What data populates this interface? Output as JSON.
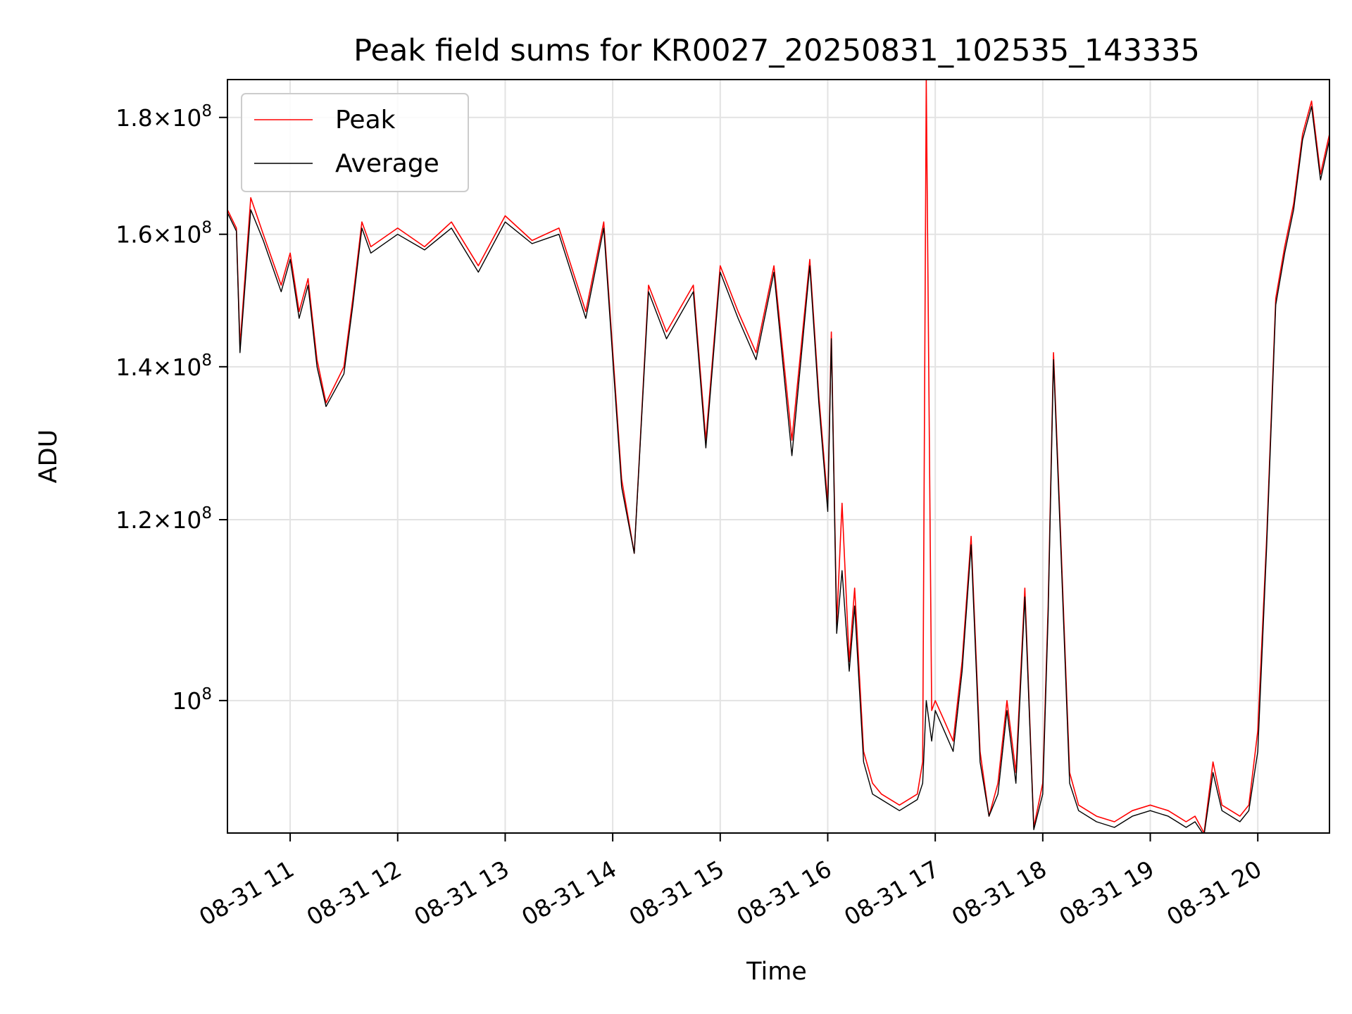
{
  "chart_data": {
    "type": "line",
    "title": "Peak field sums for KR0027_20250831_102535_143335",
    "xlabel": "Time",
    "ylabel": "ADU",
    "y_scale": "log",
    "xlim": [
      "2025-08-31 10:25",
      "2025-08-31 20:40"
    ],
    "ylim": [
      87500000,
      187000000
    ],
    "x_ticks": [
      "08-31 11",
      "08-31 12",
      "08-31 13",
      "08-31 14",
      "08-31 15",
      "08-31 16",
      "08-31 17",
      "08-31 18",
      "08-31 19",
      "08-31 20"
    ],
    "y_ticks": [
      {
        "value": 100000000,
        "base": "10",
        "exp": "8"
      },
      {
        "value": 120000000,
        "mant": "1.2",
        "base": "10",
        "exp": "8"
      },
      {
        "value": 140000000,
        "mant": "1.4",
        "base": "10",
        "exp": "8"
      },
      {
        "value": 160000000,
        "mant": "1.6",
        "base": "10",
        "exp": "8"
      },
      {
        "value": 180000000,
        "mant": "1.8",
        "base": "10",
        "exp": "8"
      }
    ],
    "grid": true,
    "legend_position": "upper-left",
    "series": [
      {
        "name": "Peak",
        "color": "#ff0000",
        "x": [
          "2025-08-31 10:25",
          "2025-08-31 10:30",
          "2025-08-31 10:32",
          "2025-08-31 10:38",
          "2025-08-31 10:45",
          "2025-08-31 10:55",
          "2025-08-31 11:00",
          "2025-08-31 11:05",
          "2025-08-31 11:10",
          "2025-08-31 11:15",
          "2025-08-31 11:20",
          "2025-08-31 11:30",
          "2025-08-31 11:35",
          "2025-08-31 11:40",
          "2025-08-31 11:45",
          "2025-08-31 12:00",
          "2025-08-31 12:15",
          "2025-08-31 12:30",
          "2025-08-31 12:45",
          "2025-08-31 13:00",
          "2025-08-31 13:15",
          "2025-08-31 13:30",
          "2025-08-31 13:45",
          "2025-08-31 13:55",
          "2025-08-31 14:05",
          "2025-08-31 14:12",
          "2025-08-31 14:20",
          "2025-08-31 14:30",
          "2025-08-31 14:45",
          "2025-08-31 14:52",
          "2025-08-31 15:00",
          "2025-08-31 15:10",
          "2025-08-31 15:20",
          "2025-08-31 15:30",
          "2025-08-31 15:40",
          "2025-08-31 15:50",
          "2025-08-31 15:55",
          "2025-08-31 16:00",
          "2025-08-31 16:02",
          "2025-08-31 16:05",
          "2025-08-31 16:08",
          "2025-08-31 16:12",
          "2025-08-31 16:15",
          "2025-08-31 16:20",
          "2025-08-31 16:25",
          "2025-08-31 16:30",
          "2025-08-31 16:40",
          "2025-08-31 16:50",
          "2025-08-31 16:53",
          "2025-08-31 16:55",
          "2025-08-31 16:58",
          "2025-08-31 17:00",
          "2025-08-31 17:05",
          "2025-08-31 17:10",
          "2025-08-31 17:15",
          "2025-08-31 17:20",
          "2025-08-31 17:25",
          "2025-08-31 17:30",
          "2025-08-31 17:35",
          "2025-08-31 17:40",
          "2025-08-31 17:45",
          "2025-08-31 17:50",
          "2025-08-31 17:55",
          "2025-08-31 18:00",
          "2025-08-31 18:03",
          "2025-08-31 18:06",
          "2025-08-31 18:10",
          "2025-08-31 18:15",
          "2025-08-31 18:20",
          "2025-08-31 18:30",
          "2025-08-31 18:40",
          "2025-08-31 18:50",
          "2025-08-31 19:00",
          "2025-08-31 19:10",
          "2025-08-31 19:15",
          "2025-08-31 19:20",
          "2025-08-31 19:25",
          "2025-08-31 19:30",
          "2025-08-31 19:35",
          "2025-08-31 19:40",
          "2025-08-31 19:50",
          "2025-08-31 19:55",
          "2025-08-31 20:00",
          "2025-08-31 20:05",
          "2025-08-31 20:10",
          "2025-08-31 20:15",
          "2025-08-31 20:20",
          "2025-08-31 20:25",
          "2025-08-31 20:30",
          "2025-08-31 20:35",
          "2025-08-31 20:40"
        ],
        "y": [
          164000000,
          161000000,
          143000000,
          166000000,
          160000000,
          152000000,
          157000000,
          148000000,
          153000000,
          141000000,
          135000000,
          140000000,
          150000000,
          162000000,
          158000000,
          161000000,
          158000000,
          162000000,
          155000000,
          163000000,
          159000000,
          161000000,
          148000000,
          162000000,
          125000000,
          116000000,
          152000000,
          145000000,
          152000000,
          130000000,
          155000000,
          148000000,
          142000000,
          155000000,
          130000000,
          156000000,
          136000000,
          122000000,
          145000000,
          108000000,
          122000000,
          104000000,
          112000000,
          95000000,
          92000000,
          91000000,
          90000000,
          91000000,
          94000000,
          187000000,
          99000000,
          100000000,
          98000000,
          96000000,
          104000000,
          118000000,
          95000000,
          89000000,
          92000000,
          100000000,
          93000000,
          112000000,
          88000000,
          92000000,
          110000000,
          142000000,
          118000000,
          93000000,
          90000000,
          89000000,
          88500000,
          89500000,
          90000000,
          89500000,
          89000000,
          88500000,
          89000000,
          87500000,
          94000000,
          90000000,
          89000000,
          90000000,
          97000000,
          118000000,
          150000000,
          158000000,
          165000000,
          177000000,
          183000000,
          170000000,
          177000000
        ]
      },
      {
        "name": "Average",
        "color": "#000000",
        "x": [
          "2025-08-31 10:25",
          "2025-08-31 10:30",
          "2025-08-31 10:32",
          "2025-08-31 10:38",
          "2025-08-31 10:45",
          "2025-08-31 10:55",
          "2025-08-31 11:00",
          "2025-08-31 11:05",
          "2025-08-31 11:10",
          "2025-08-31 11:15",
          "2025-08-31 11:20",
          "2025-08-31 11:30",
          "2025-08-31 11:35",
          "2025-08-31 11:40",
          "2025-08-31 11:45",
          "2025-08-31 12:00",
          "2025-08-31 12:15",
          "2025-08-31 12:30",
          "2025-08-31 12:45",
          "2025-08-31 13:00",
          "2025-08-31 13:15",
          "2025-08-31 13:30",
          "2025-08-31 13:45",
          "2025-08-31 13:55",
          "2025-08-31 14:05",
          "2025-08-31 14:12",
          "2025-08-31 14:20",
          "2025-08-31 14:30",
          "2025-08-31 14:45",
          "2025-08-31 14:52",
          "2025-08-31 15:00",
          "2025-08-31 15:10",
          "2025-08-31 15:20",
          "2025-08-31 15:30",
          "2025-08-31 15:40",
          "2025-08-31 15:50",
          "2025-08-31 15:55",
          "2025-08-31 16:00",
          "2025-08-31 16:02",
          "2025-08-31 16:05",
          "2025-08-31 16:08",
          "2025-08-31 16:12",
          "2025-08-31 16:15",
          "2025-08-31 16:20",
          "2025-08-31 16:25",
          "2025-08-31 16:30",
          "2025-08-31 16:40",
          "2025-08-31 16:50",
          "2025-08-31 16:53",
          "2025-08-31 16:55",
          "2025-08-31 16:58",
          "2025-08-31 17:00",
          "2025-08-31 17:05",
          "2025-08-31 17:10",
          "2025-08-31 17:15",
          "2025-08-31 17:20",
          "2025-08-31 17:25",
          "2025-08-31 17:30",
          "2025-08-31 17:35",
          "2025-08-31 17:40",
          "2025-08-31 17:45",
          "2025-08-31 17:50",
          "2025-08-31 17:55",
          "2025-08-31 18:00",
          "2025-08-31 18:03",
          "2025-08-31 18:06",
          "2025-08-31 18:10",
          "2025-08-31 18:15",
          "2025-08-31 18:20",
          "2025-08-31 18:30",
          "2025-08-31 18:40",
          "2025-08-31 18:50",
          "2025-08-31 19:00",
          "2025-08-31 19:10",
          "2025-08-31 19:15",
          "2025-08-31 19:20",
          "2025-08-31 19:25",
          "2025-08-31 19:30",
          "2025-08-31 19:35",
          "2025-08-31 19:40",
          "2025-08-31 19:50",
          "2025-08-31 19:55",
          "2025-08-31 20:00",
          "2025-08-31 20:05",
          "2025-08-31 20:10",
          "2025-08-31 20:15",
          "2025-08-31 20:20",
          "2025-08-31 20:25",
          "2025-08-31 20:30",
          "2025-08-31 20:35",
          "2025-08-31 20:40"
        ],
        "y": [
          163500000,
          160500000,
          142000000,
          164000000,
          159000000,
          151000000,
          156000000,
          147000000,
          152000000,
          140000000,
          134500000,
          139000000,
          149000000,
          161000000,
          157000000,
          160000000,
          157500000,
          161000000,
          154000000,
          162000000,
          158500000,
          160000000,
          147000000,
          161000000,
          124000000,
          116000000,
          151000000,
          144000000,
          151000000,
          129000000,
          154000000,
          147000000,
          141000000,
          154000000,
          128000000,
          155000000,
          135000000,
          121000000,
          144000000,
          107000000,
          114000000,
          103000000,
          110000000,
          94000000,
          91000000,
          90500000,
          89500000,
          90500000,
          92000000,
          100000000,
          96000000,
          99000000,
          97000000,
          95000000,
          103000000,
          117000000,
          94000000,
          89000000,
          91000000,
          99000000,
          92000000,
          111000000,
          87800000,
          91000000,
          109000000,
          141000000,
          117000000,
          92000000,
          89500000,
          88500000,
          88000000,
          89000000,
          89500000,
          89000000,
          88500000,
          88000000,
          88500000,
          87300000,
          93000000,
          89500000,
          88500000,
          89500000,
          95000000,
          117000000,
          149000000,
          157000000,
          164000000,
          176000000,
          182000000,
          169000000,
          176000000
        ]
      }
    ]
  }
}
